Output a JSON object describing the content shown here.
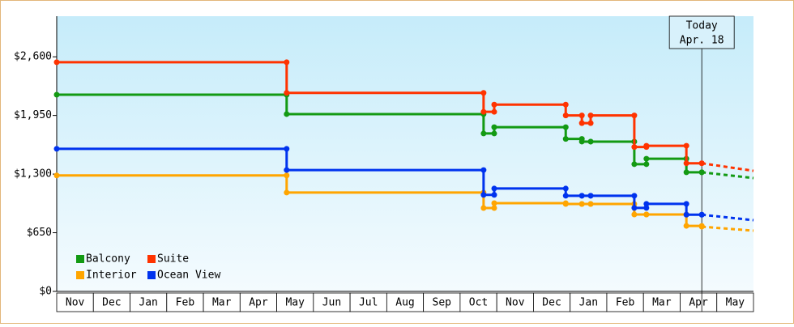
{
  "chart_data": {
    "type": "step-line",
    "categories": [
      "Nov",
      "Dec",
      "Jan",
      "Feb",
      "Mar",
      "Apr",
      "May",
      "Jun",
      "Jul",
      "Aug",
      "Sep",
      "Oct",
      "Nov",
      "Dec",
      "Jan",
      "Feb",
      "Mar",
      "Apr",
      "May"
    ],
    "x": [
      0,
      6.27,
      11.64,
      11.93,
      13.88,
      14.32,
      14.56,
      15.75,
      16.08,
      17.17,
      17.59
    ],
    "xlim": [
      0,
      19
    ],
    "ylim": [
      0,
      3050
    ],
    "yticks": [
      {
        "value": 0,
        "label": "$0"
      },
      {
        "value": 650,
        "label": "$650"
      },
      {
        "value": 1300,
        "label": "$1,300"
      },
      {
        "value": 1950,
        "label": "$1,950"
      },
      {
        "value": 2600,
        "label": "$2,600"
      }
    ],
    "series": [
      {
        "name": "Balcony",
        "color": "#139a13",
        "values": [
          2180,
          1965,
          1750,
          1820,
          1690,
          1660,
          1660,
          1410,
          1470,
          1320,
          1320
        ],
        "projection": 1256
      },
      {
        "name": "Suite",
        "color": "#ff3300",
        "values": [
          2540,
          2200,
          1990,
          2070,
          1950,
          1865,
          1950,
          1600,
          1614,
          1420,
          1420
        ],
        "projection": 1336
      },
      {
        "name": "Interior",
        "color": "#ffa500",
        "values": [
          1285,
          1095,
          924,
          978,
          969,
          969,
          969,
          852,
          852,
          726,
          717
        ],
        "projection": 673
      },
      {
        "name": "Ocean View",
        "color": "#0033ee",
        "values": [
          1580,
          1345,
          1070,
          1140,
          1060,
          1060,
          1060,
          925,
          970,
          850,
          850
        ],
        "projection": 789
      }
    ],
    "annotation": {
      "x": 17.59,
      "lines": [
        "Today",
        "Apr. 18"
      ]
    },
    "legend": "lower left"
  }
}
